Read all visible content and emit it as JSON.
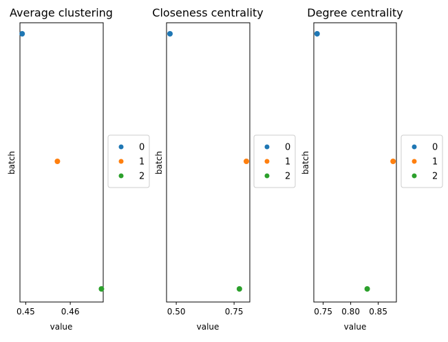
{
  "colors": {
    "0": "#1f77b4",
    "1": "#ff7f0e",
    "2": "#2ca02c"
  },
  "chart_data": [
    {
      "type": "scatter",
      "title": "Average clustering",
      "xlabel": "value",
      "ylabel": "batch",
      "xlim": [
        0.4487,
        0.4674
      ],
      "xticks": [
        0.45,
        0.46
      ],
      "xtick_labels": [
        "0.45",
        "0.46"
      ],
      "categories": [
        "0",
        "1",
        "2"
      ],
      "points": [
        {
          "batch": "0",
          "value": 0.4492
        },
        {
          "batch": "1",
          "value": 0.4571
        },
        {
          "batch": "2",
          "value": 0.467
        }
      ],
      "legend": {
        "entries": [
          "0",
          "1",
          "2"
        ],
        "placement": "center-right-outside"
      },
      "grid": false
    },
    {
      "type": "scatter",
      "title": "Closeness centrality",
      "xlabel": "value",
      "ylabel": "batch",
      "xlim": [
        0.458,
        0.818
      ],
      "xticks": [
        0.5,
        0.75
      ],
      "xtick_labels": [
        "0.50",
        "0.75"
      ],
      "categories": [
        "0",
        "1",
        "2"
      ],
      "points": [
        {
          "batch": "0",
          "value": 0.473
        },
        {
          "batch": "1",
          "value": 0.803
        },
        {
          "batch": "2",
          "value": 0.773
        }
      ],
      "legend": {
        "entries": [
          "0",
          "1",
          "2"
        ],
        "placement": "center-right-outside"
      },
      "grid": false
    },
    {
      "type": "scatter",
      "title": "Degree centrality",
      "xlabel": "value",
      "ylabel": "batch",
      "xlim": [
        0.733,
        0.883
      ],
      "xticks": [
        0.75,
        0.8,
        0.85
      ],
      "xtick_labels": [
        "0.75",
        "0.80",
        "0.85"
      ],
      "categories": [
        "0",
        "1",
        "2"
      ],
      "points": [
        {
          "batch": "0",
          "value": 0.739
        },
        {
          "batch": "1",
          "value": 0.877
        },
        {
          "batch": "2",
          "value": 0.83
        }
      ],
      "legend": {
        "entries": [
          "0",
          "1",
          "2"
        ],
        "placement": "center-right-outside"
      },
      "grid": false
    }
  ]
}
